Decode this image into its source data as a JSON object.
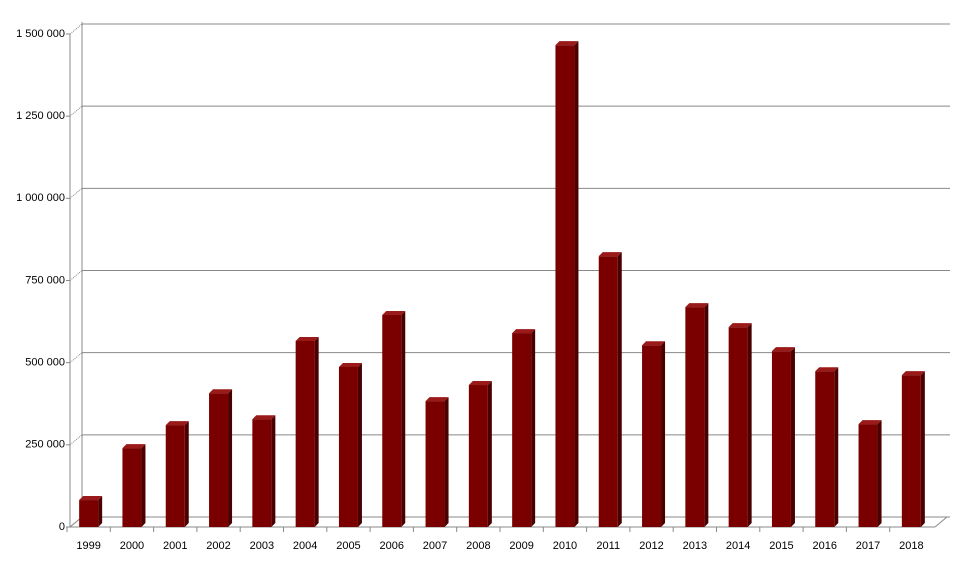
{
  "chart_data": {
    "type": "bar",
    "categories": [
      "1999",
      "2000",
      "2001",
      "2002",
      "2003",
      "2004",
      "2005",
      "2006",
      "2007",
      "2008",
      "2009",
      "2010",
      "2011",
      "2012",
      "2013",
      "2014",
      "2015",
      "2016",
      "2017",
      "2018"
    ],
    "values": [
      82000,
      240000,
      310000,
      407000,
      328000,
      566000,
      487000,
      645000,
      383000,
      432000,
      590000,
      1466000,
      824000,
      553000,
      669000,
      608000,
      535000,
      474000,
      313000,
      462000
    ],
    "color": "#7a0000",
    "ylim": [
      0,
      1500000
    ],
    "yticks": [
      0,
      {
        "value": 250000,
        "label": "250 000"
      },
      {
        "value": 500000,
        "label": "500 000"
      },
      {
        "value": 750000,
        "label": "750 000"
      },
      {
        "value": 1000000,
        "label": "1 000 000"
      },
      {
        "value": 1250000,
        "label": "1 250 000"
      },
      {
        "value": 1500000,
        "label": "1 500 000"
      }
    ],
    "grid": true
  }
}
